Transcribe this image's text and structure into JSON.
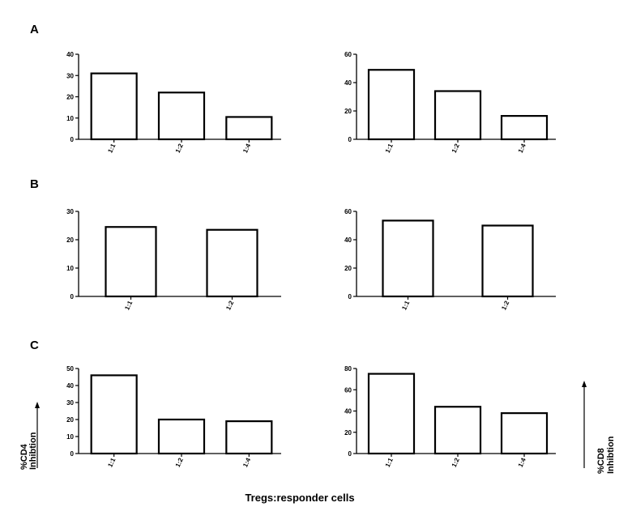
{
  "panel_letters": [
    "A",
    "B",
    "C"
  ],
  "left_axis_label_line1": "%CD4",
  "left_axis_label_line2": "Inhibtion",
  "right_axis_label_line1": "%CD8",
  "right_axis_label_line2": "Inhibtion",
  "shared_xlabel": "Tregs:responder cells",
  "chart_data": [
    {
      "type": "bar",
      "panel": "A",
      "categories": [
        "1:1",
        "1:2",
        "1:4"
      ],
      "values": [
        31,
        22,
        10.5
      ],
      "ylim": [
        0,
        40
      ],
      "yticks": [
        0,
        10,
        20,
        30,
        40
      ]
    },
    {
      "type": "bar",
      "panel": "A",
      "categories": [
        "1:1",
        "1:2",
        "1:4"
      ],
      "values": [
        49,
        34,
        16.5
      ],
      "ylim": [
        0,
        60
      ],
      "yticks": [
        0,
        20,
        40,
        60
      ]
    },
    {
      "type": "bar",
      "panel": "B",
      "categories": [
        "1:1",
        "1:2"
      ],
      "values": [
        24.5,
        23.5
      ],
      "ylim": [
        0,
        30
      ],
      "yticks": [
        0,
        10,
        20,
        30
      ]
    },
    {
      "type": "bar",
      "panel": "B",
      "categories": [
        "1:1",
        "1:2"
      ],
      "values": [
        53.5,
        50
      ],
      "ylim": [
        0,
        60
      ],
      "yticks": [
        0,
        20,
        40,
        60
      ]
    },
    {
      "type": "bar",
      "panel": "C",
      "categories": [
        "1:1",
        "1:2",
        "1:4"
      ],
      "values": [
        46,
        20,
        19
      ],
      "ylim": [
        0,
        50
      ],
      "yticks": [
        0,
        10,
        20,
        30,
        40,
        50
      ]
    },
    {
      "type": "bar",
      "panel": "C",
      "categories": [
        "1:1",
        "1:2",
        "1:4"
      ],
      "values": [
        75,
        44,
        38
      ],
      "ylim": [
        0,
        80
      ],
      "yticks": [
        0,
        20,
        40,
        60,
        80
      ]
    }
  ]
}
